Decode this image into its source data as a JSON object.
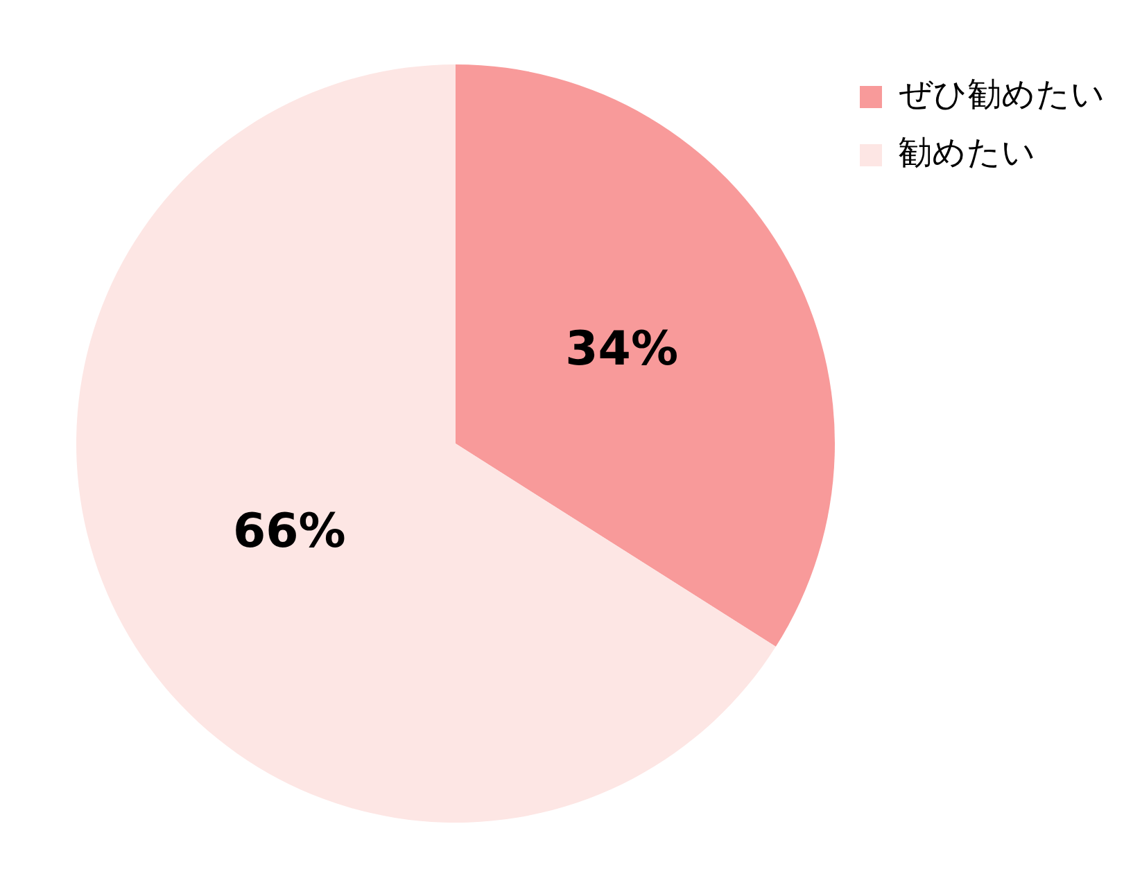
{
  "chart_data": {
    "type": "pie",
    "categories": [
      "ぜひ勧めたい",
      "勧めたい"
    ],
    "values": [
      34,
      66
    ],
    "colors": [
      "#f89a9a",
      "#fde6e4"
    ],
    "value_labels": [
      "34%",
      "66%"
    ],
    "legend": "top right"
  }
}
